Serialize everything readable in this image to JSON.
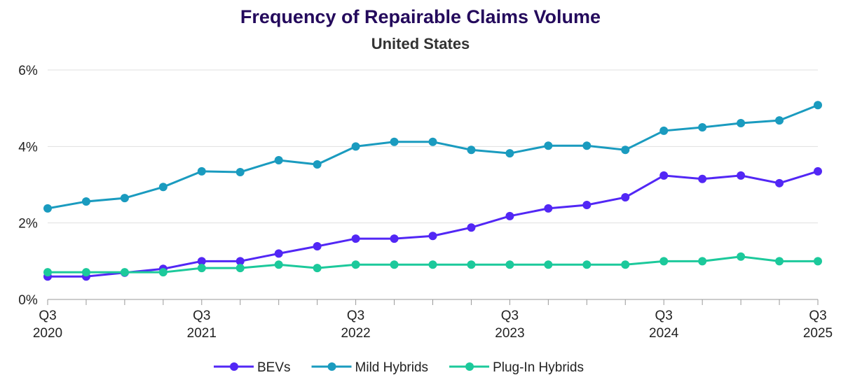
{
  "chart_data": {
    "type": "line",
    "title": "Frequency of Repairable Claims Volume",
    "subtitle": "United States",
    "xlabel": "",
    "ylabel": "",
    "ylim": [
      0,
      6
    ],
    "yticks": [
      "0%",
      "2%",
      "4%",
      "6%"
    ],
    "ytick_values": [
      0,
      2,
      4,
      6
    ],
    "x_count": 21,
    "xtick_labels": [
      {
        "index": 0,
        "q": "Q3",
        "year": "2020"
      },
      {
        "index": 4,
        "q": "Q3",
        "year": "2021"
      },
      {
        "index": 8,
        "q": "Q3",
        "year": "2022"
      },
      {
        "index": 12,
        "q": "Q3",
        "year": "2023"
      },
      {
        "index": 16,
        "q": "Q3",
        "year": "2024"
      },
      {
        "index": 20,
        "q": "Q3",
        "year": "2025"
      }
    ],
    "grid": true,
    "legend_position": "bottom-center",
    "series": [
      {
        "name": "BEVs",
        "color": "#5227f5",
        "values": [
          0.6,
          0.6,
          0.7,
          0.8,
          1.0,
          1.0,
          1.2,
          1.39,
          1.59,
          1.59,
          1.66,
          1.88,
          2.18,
          2.38,
          2.47,
          2.67,
          3.24,
          3.15,
          3.24,
          3.04,
          3.35
        ]
      },
      {
        "name": "Mild Hybrids",
        "color": "#1a9bbf",
        "values": [
          2.38,
          2.56,
          2.65,
          2.94,
          3.35,
          3.33,
          3.64,
          3.53,
          4.0,
          4.12,
          4.12,
          3.91,
          3.82,
          4.02,
          4.02,
          3.91,
          4.41,
          4.5,
          4.61,
          4.68,
          5.08
        ]
      },
      {
        "name": "Plug-In Hybrids",
        "color": "#1cc99b",
        "values": [
          0.71,
          0.71,
          0.71,
          0.71,
          0.82,
          0.82,
          0.91,
          0.82,
          0.91,
          0.91,
          0.91,
          0.91,
          0.91,
          0.91,
          0.91,
          0.91,
          1.0,
          1.0,
          1.12,
          1.0,
          1.0
        ]
      }
    ]
  }
}
